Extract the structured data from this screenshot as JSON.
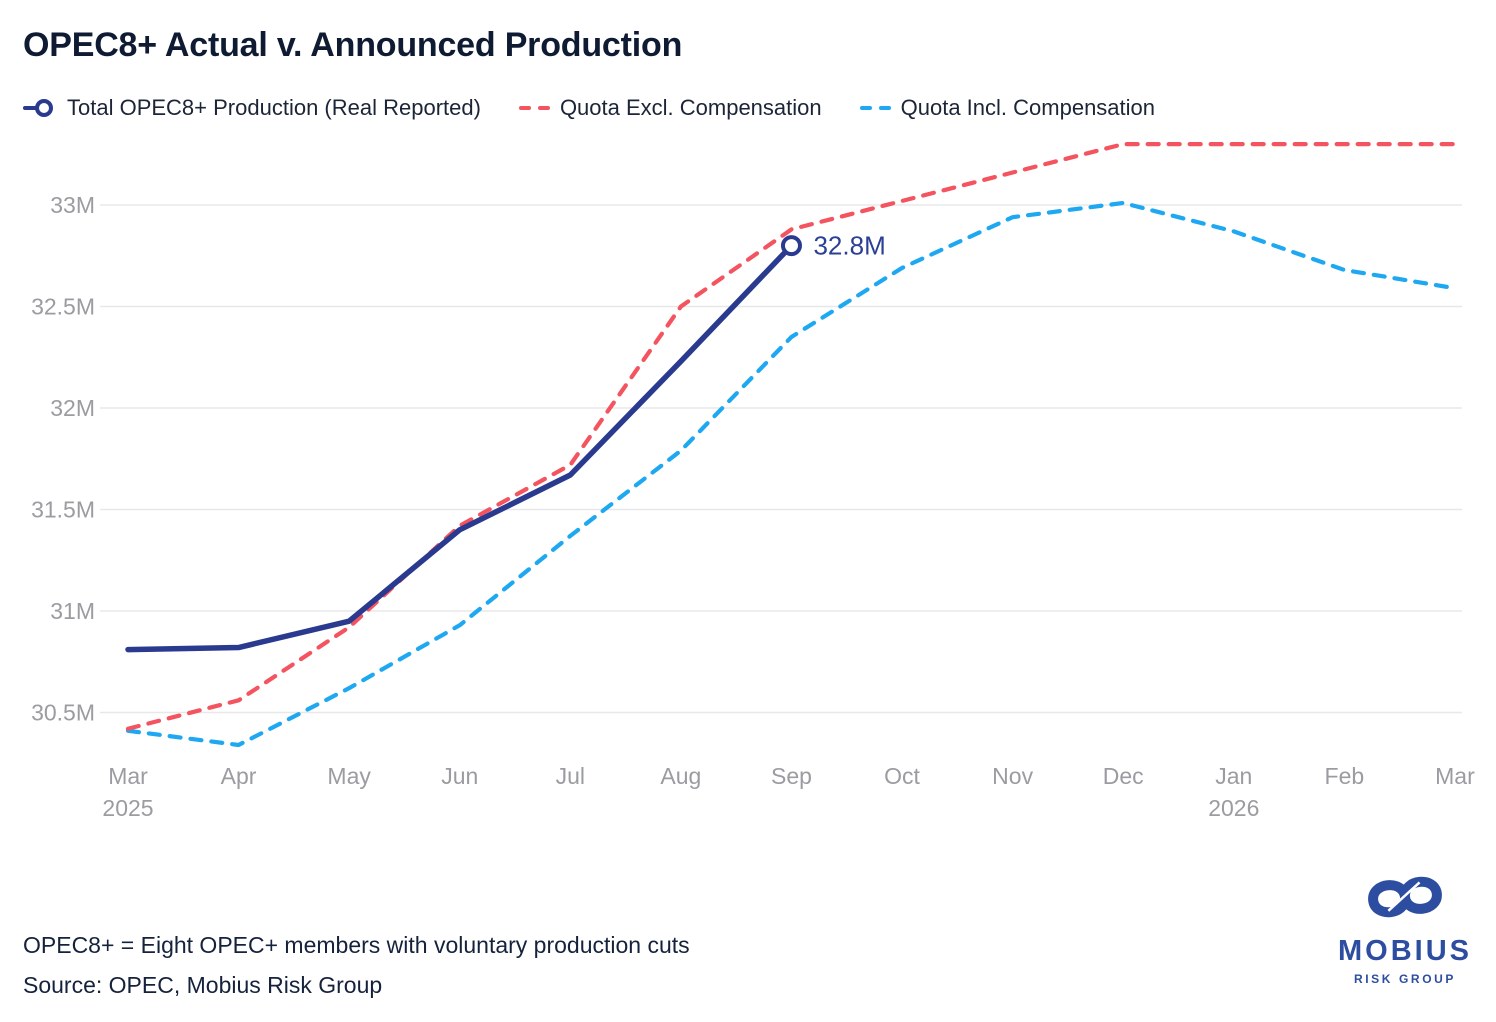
{
  "title": "OPEC8+ Actual v. Announced Production",
  "legend": [
    {
      "label": "Total OPEC8+ Production (Real Reported)",
      "color": "#2a3b8f",
      "marker": "line-circle"
    },
    {
      "label": "Quota Excl. Compensation",
      "color": "#f4545f",
      "marker": "dashed"
    },
    {
      "label": "Quota Incl. Compensation",
      "color": "#1fa8f2",
      "marker": "dashed"
    }
  ],
  "chart_data": {
    "type": "line",
    "title": "OPEC8+ Actual v. Announced Production",
    "x_labels": [
      "Mar",
      "Apr",
      "May",
      "Jun",
      "Jul",
      "Aug",
      "Sep",
      "Oct",
      "Nov",
      "Dec",
      "Jan",
      "Feb",
      "Mar"
    ],
    "x_sub_labels": {
      "0": "2025",
      "10": "2026"
    },
    "y_ticks": [
      30.5,
      31,
      31.5,
      32,
      32.5,
      33
    ],
    "y_tick_labels": [
      "30.5M",
      "31M",
      "31.5M",
      "32M",
      "32.5M",
      "33M"
    ],
    "ylim": [
      30.25,
      33.45
    ],
    "grid": "horizontal",
    "legend_position": "top",
    "series": [
      {
        "name": "Total OPEC8+ Production (Real Reported)",
        "color": "#2a3b8f",
        "style": "solid",
        "values": [
          30.81,
          30.82,
          30.95,
          31.4,
          31.67,
          32.23,
          32.8
        ],
        "end_marker": "open-circle",
        "end_label": "32.8M"
      },
      {
        "name": "Quota Excl. Compensation",
        "color": "#f4545f",
        "style": "dashed",
        "values": [
          30.42,
          30.56,
          30.92,
          31.42,
          31.72,
          32.5,
          32.88,
          33.02,
          33.16,
          33.3,
          33.3,
          33.3,
          33.3
        ]
      },
      {
        "name": "Quota Incl. Compensation",
        "color": "#1fa8f2",
        "style": "dashed",
        "values": [
          30.41,
          30.34,
          30.62,
          30.93,
          31.37,
          31.79,
          32.35,
          32.69,
          32.94,
          33.01,
          32.87,
          32.68,
          32.59
        ]
      }
    ],
    "annotations": [
      {
        "text": "32.8M",
        "series": "Total OPEC8+ Production (Real Reported)",
        "at": "last-point"
      }
    ]
  },
  "colors": {
    "actual_line": "#2a3b8f",
    "quota_excl": "#f4545f",
    "quota_incl": "#1fa8f2",
    "gridline": "#e8e8ea",
    "tick_label": "#9b9ca1",
    "text_dark": "#15223c",
    "logo_blue": "#2d4da1"
  },
  "footnote": "OPEC8+ = Eight OPEC+ members with voluntary production cuts",
  "source": "Source: OPEC, Mobius Risk Group",
  "logo": {
    "wordmark": "MOBIUS",
    "subtitle": "RISK GROUP",
    "icon": "infinity"
  }
}
